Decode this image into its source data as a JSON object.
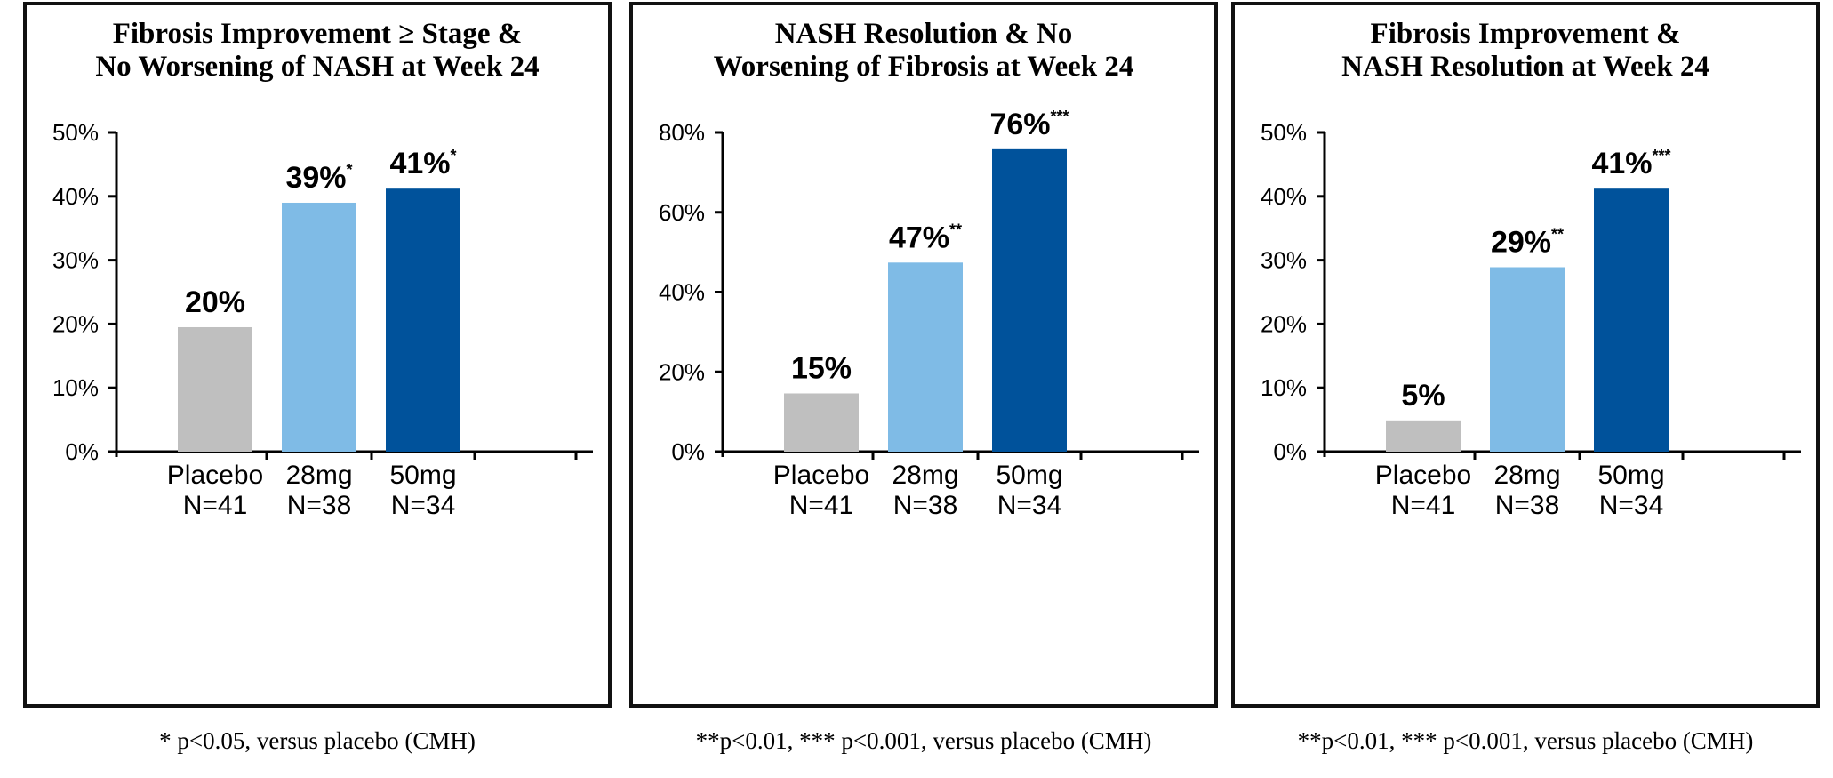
{
  "colors": {
    "placebo": "#bfbfbf",
    "mg28": "#7fbbe6",
    "mg50": "#00529b",
    "axis": "#000000"
  },
  "chart_data": [
    {
      "type": "bar",
      "title": [
        "Fibrosis Improvement ≥ Stage &",
        "No Worsening of NASH at Week 24"
      ],
      "categories": [
        [
          "Placebo",
          "N=41"
        ],
        [
          "28mg",
          "N=38"
        ],
        [
          "50mg",
          "N=34"
        ]
      ],
      "values": [
        19.5,
        39,
        41.2
      ],
      "labels": [
        "20%",
        "39%",
        "41%"
      ],
      "label_sup": [
        "",
        "*",
        "*"
      ],
      "yticks": [
        "0%",
        "10%",
        "20%",
        "30%",
        "40%",
        "50%"
      ],
      "ylim": [
        0,
        50
      ],
      "footnote": "* p<0.05, versus placebo (CMH)"
    },
    {
      "type": "bar",
      "title": [
        "NASH Resolution & No",
        "Worsening of Fibrosis at Week 24"
      ],
      "categories": [
        [
          "Placebo",
          "N=41"
        ],
        [
          "28mg",
          "N=38"
        ],
        [
          "50mg",
          "N=34"
        ]
      ],
      "values": [
        14.6,
        47.4,
        75.8
      ],
      "labels": [
        "15%",
        "47%",
        "76%"
      ],
      "label_sup": [
        "",
        "**",
        "***"
      ],
      "yticks": [
        "0%",
        "20%",
        "40%",
        "60%",
        "80%"
      ],
      "ylim": [
        0,
        80
      ],
      "footnote": "**p<0.01, *** p<0.001, versus placebo (CMH)"
    },
    {
      "type": "bar",
      "title": [
        "Fibrosis Improvement &",
        "NASH Resolution at Week 24"
      ],
      "categories": [
        [
          "Placebo",
          "N=41"
        ],
        [
          "28mg",
          "N=38"
        ],
        [
          "50mg",
          "N=34"
        ]
      ],
      "values": [
        4.9,
        28.9,
        41.2
      ],
      "labels": [
        "5%",
        "29%",
        "41%"
      ],
      "label_sup": [
        "",
        "**",
        "***"
      ],
      "yticks": [
        "0%",
        "10%",
        "20%",
        "30%",
        "40%",
        "50%"
      ],
      "ylim": [
        0,
        50
      ],
      "footnote": "**p<0.01, *** p<0.001, versus placebo (CMH)"
    }
  ]
}
